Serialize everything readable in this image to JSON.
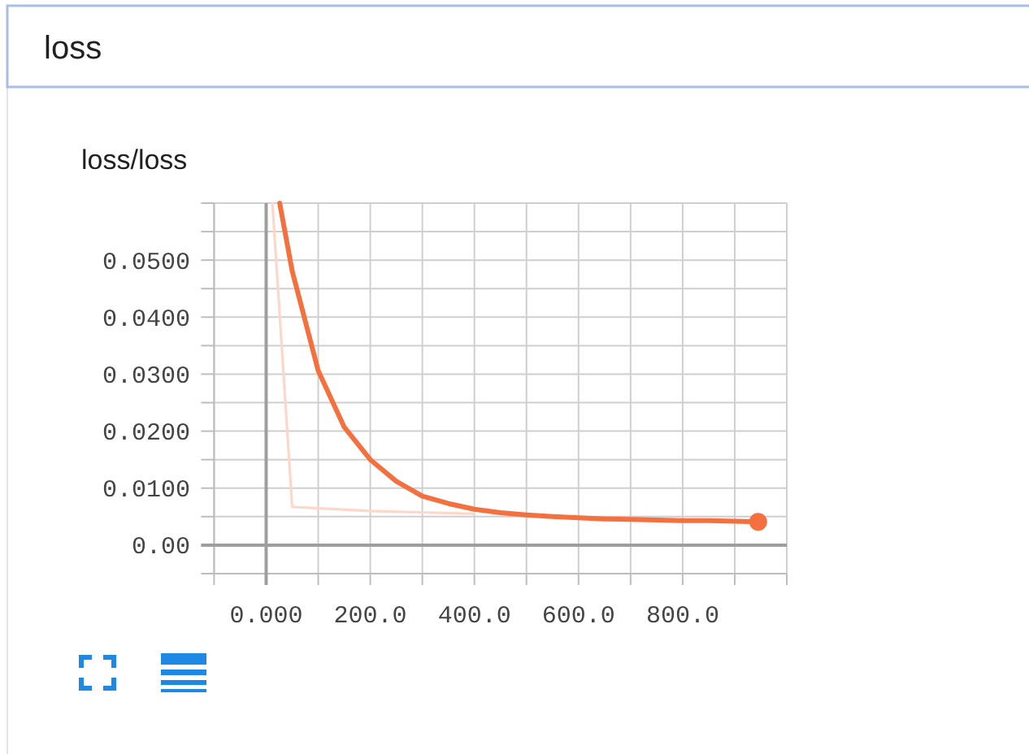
{
  "chart_data": {
    "type": "line",
    "title": "loss",
    "subtitle": "loss/loss",
    "xlim": [
      -100,
      1000
    ],
    "xticks": [
      {
        "value": -100,
        "label": null
      },
      {
        "value": 0,
        "label": "0.000"
      },
      {
        "value": 100,
        "label": null
      },
      {
        "value": 200,
        "label": "200.0"
      },
      {
        "value": 300,
        "label": null
      },
      {
        "value": 400,
        "label": "400.0"
      },
      {
        "value": 500,
        "label": null
      },
      {
        "value": 600,
        "label": "600.0"
      },
      {
        "value": 700,
        "label": null
      },
      {
        "value": 800,
        "label": "800.0"
      },
      {
        "value": 900,
        "label": null
      },
      {
        "value": 1000,
        "label": null
      }
    ],
    "ylim": [
      -0.005,
      0.06
    ],
    "yticks": [
      {
        "value": -0.005,
        "label": null
      },
      {
        "value": 0,
        "label": "0.00"
      },
      {
        "value": 0.005,
        "label": null
      },
      {
        "value": 0.01,
        "label": "0.0100"
      },
      {
        "value": 0.015,
        "label": null
      },
      {
        "value": 0.02,
        "label": "0.0200"
      },
      {
        "value": 0.025,
        "label": null
      },
      {
        "value": 0.03,
        "label": "0.0300"
      },
      {
        "value": 0.035,
        "label": null
      },
      {
        "value": 0.04,
        "label": "0.0400"
      },
      {
        "value": 0.045,
        "label": null
      },
      {
        "value": 0.05,
        "label": "0.0500"
      },
      {
        "value": 0.055,
        "label": null
      },
      {
        "value": 0.06,
        "label": null
      }
    ],
    "grid": true,
    "series": [
      {
        "type": "line",
        "color": "#fdd8ca",
        "x": [
          12,
          50,
          200,
          400
        ],
        "values": [
          0.06,
          0.0067,
          0.006,
          0.0055
        ]
      },
      {
        "type": "line",
        "color": "#f4703f",
        "x": [
          26,
          50,
          100,
          150,
          200,
          250,
          300,
          350,
          400,
          450,
          500,
          550,
          600,
          650,
          700,
          750,
          800,
          850,
          900,
          945
        ],
        "values": [
          0.06,
          0.0481,
          0.0306,
          0.0207,
          0.015,
          0.0112,
          0.0086,
          0.0073,
          0.0063,
          0.0057,
          0.0053,
          0.005,
          0.0048,
          0.0046,
          0.0045,
          0.0044,
          0.0043,
          0.0043,
          0.0042,
          0.0041
        ]
      },
      {
        "type": "scatter",
        "color": "#f4703f",
        "marker": "circle",
        "x": [
          945
        ],
        "values": [
          0.0041
        ]
      }
    ]
  }
}
